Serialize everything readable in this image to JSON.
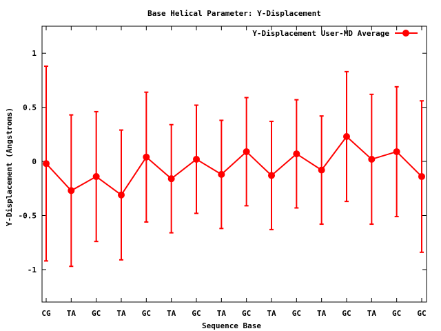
{
  "chart_data": {
    "type": "line",
    "title": "Base  Helical Parameter: Y-Displacement",
    "xlabel": "Sequence Base",
    "ylabel": "Y-Displacement (Angstroms)",
    "categories": [
      "CG",
      "TA",
      "GC",
      "TA",
      "GC",
      "TA",
      "GC",
      "TA",
      "GC",
      "TA",
      "GC",
      "TA",
      "GC",
      "TA",
      "GC",
      "GC"
    ],
    "ylim": [
      -1.3,
      1.25
    ],
    "yticks": [
      1,
      0.5,
      0,
      -0.5,
      -1
    ],
    "ytick_labels": [
      "1",
      "0.5",
      "0",
      "-0.5",
      "-1"
    ],
    "grid": false,
    "legend_position": "top-right",
    "series": [
      {
        "name": "Y-Displacement User-MD Average",
        "color": "#ff0000",
        "values": [
          -0.02,
          -0.27,
          -0.14,
          -0.31,
          0.04,
          -0.16,
          0.02,
          -0.12,
          0.09,
          -0.13,
          0.07,
          -0.08,
          0.23,
          0.02,
          0.09,
          -0.14
        ],
        "error_low": [
          -0.92,
          -0.97,
          -0.74,
          -0.91,
          -0.56,
          -0.66,
          -0.48,
          -0.62,
          -0.41,
          -0.63,
          -0.43,
          -0.58,
          -0.37,
          -0.58,
          -0.51,
          -0.84
        ],
        "error_high": [
          0.88,
          0.43,
          0.46,
          0.29,
          0.64,
          0.34,
          0.52,
          0.38,
          0.59,
          0.37,
          0.57,
          0.42,
          0.83,
          0.62,
          0.69,
          0.56
        ]
      }
    ]
  }
}
